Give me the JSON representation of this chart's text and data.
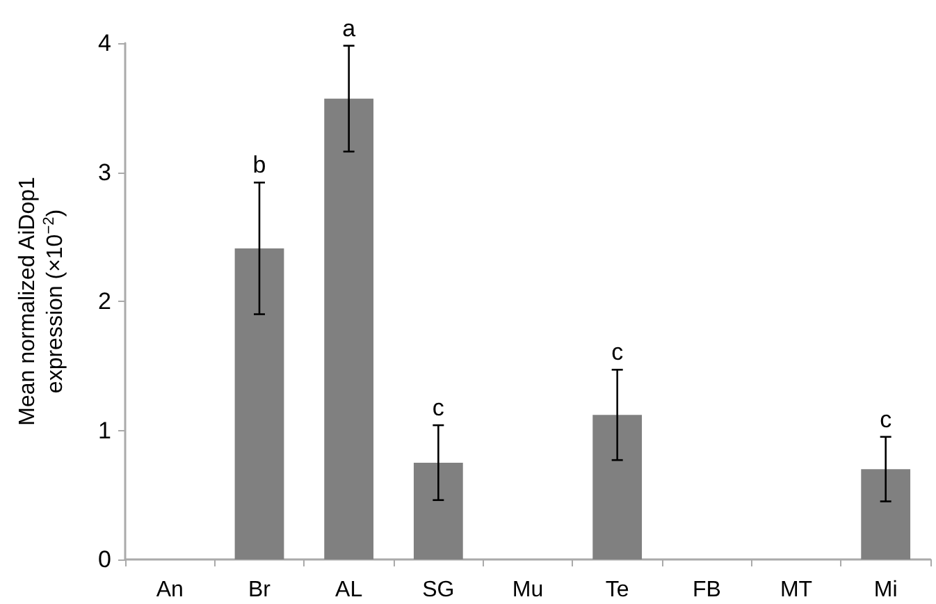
{
  "chart_data": {
    "type": "bar",
    "ylabel": "Mean normalized AiDop1\nexpression (×10$^{−2}$)",
    "categories": [
      "An",
      "Br",
      "AL",
      "SG",
      "Mu",
      "Te",
      "FB",
      "MT",
      "Mi"
    ],
    "values": [
      0,
      2.41,
      3.57,
      0.75,
      0,
      1.12,
      0,
      0,
      0.7
    ],
    "errors": [
      null,
      0.51,
      0.41,
      0.29,
      null,
      0.35,
      null,
      null,
      0.25
    ],
    "color": "#808080",
    "ylim": [
      0,
      4
    ],
    "yticks": [
      0,
      1,
      2,
      3,
      4
    ],
    "grid": false,
    "annotations": [
      {
        "text": "b",
        "x": "Br",
        "y": 2.92
      },
      {
        "text": "a",
        "x": "AL",
        "y": 3.98
      },
      {
        "text": "c",
        "x": "SG",
        "y": 1.04
      },
      {
        "text": "c",
        "x": "Te",
        "y": 1.47
      },
      {
        "text": "c",
        "x": "Mi",
        "y": 0.95
      }
    ]
  }
}
